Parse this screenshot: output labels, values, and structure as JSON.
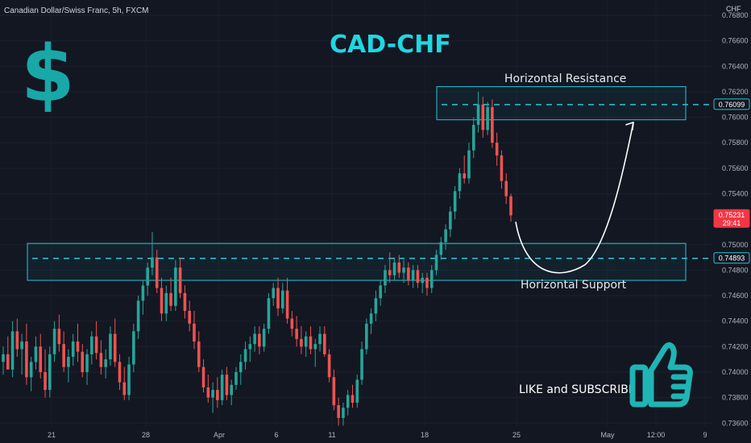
{
  "header": {
    "symbol": "Canadian Dollar/Swiss Franc, 5h, FXCM",
    "currency": "CHF"
  },
  "annotations": {
    "title": "CAD-CHF",
    "dollar_sign": "$",
    "resistance_label": "Horizontal Resistance",
    "support_label": "Horizontal Support",
    "cta": "LIKE and SUBSCRIBE",
    "thumb_icon": "thumbs-up-icon"
  },
  "colors": {
    "background": "#131722",
    "up": "#26a69a",
    "down": "#ef5350",
    "zone_stroke": "#26c6da",
    "title": "#1fd7e2",
    "dollar": "#18a8a8",
    "price_badge": "#f23645"
  },
  "chart_data": {
    "type": "candlestick",
    "symbol": "Canadian Dollar/Swiss Franc",
    "interval": "5h",
    "source": "FXCM",
    "ylim": [
      0.7357,
      0.7692
    ],
    "y_ticks": [
      "0.76800",
      "0.76600",
      "0.76400",
      "0.76200",
      "0.76000",
      "0.75800",
      "0.75600",
      "0.75400",
      "0.75200",
      "0.75000",
      "0.74800",
      "0.74600",
      "0.74400",
      "0.74200",
      "0.74000",
      "0.73800",
      "0.73600"
    ],
    "x_ticks": [
      "21",
      "28",
      "Apr",
      "6",
      "11",
      "18",
      "25",
      "May",
      "12:00",
      "9"
    ],
    "current_price": "0.75231",
    "countdown": "29:41",
    "resistance_level": "0.76099",
    "support_level": "0.74893",
    "resistance_zone": [
      0.7598,
      0.7624
    ],
    "support_zone": [
      0.7472,
      0.7501
    ],
    "projection": "drop to horizontal support then rally to horizontal resistance",
    "candles": [
      {
        "o": 0.7408,
        "h": 0.742,
        "l": 0.7398,
        "c": 0.7414
      },
      {
        "o": 0.7414,
        "h": 0.7428,
        "l": 0.7405,
        "c": 0.7402
      },
      {
        "o": 0.7402,
        "h": 0.744,
        "l": 0.7396,
        "c": 0.7432
      },
      {
        "o": 0.7432,
        "h": 0.7442,
        "l": 0.7412,
        "c": 0.7418
      },
      {
        "o": 0.7418,
        "h": 0.743,
        "l": 0.7398,
        "c": 0.7424
      },
      {
        "o": 0.7424,
        "h": 0.7438,
        "l": 0.739,
        "c": 0.7396
      },
      {
        "o": 0.7396,
        "h": 0.7412,
        "l": 0.7385,
        "c": 0.7408
      },
      {
        "o": 0.7408,
        "h": 0.7428,
        "l": 0.7402,
        "c": 0.742
      },
      {
        "o": 0.742,
        "h": 0.743,
        "l": 0.7395,
        "c": 0.74
      },
      {
        "o": 0.74,
        "h": 0.7418,
        "l": 0.738,
        "c": 0.7386
      },
      {
        "o": 0.7386,
        "h": 0.742,
        "l": 0.738,
        "c": 0.7414
      },
      {
        "o": 0.7414,
        "h": 0.744,
        "l": 0.7408,
        "c": 0.7434
      },
      {
        "o": 0.7434,
        "h": 0.7445,
        "l": 0.7416,
        "c": 0.7422
      },
      {
        "o": 0.7422,
        "h": 0.7432,
        "l": 0.74,
        "c": 0.7404
      },
      {
        "o": 0.7404,
        "h": 0.7418,
        "l": 0.7392,
        "c": 0.7412
      },
      {
        "o": 0.7412,
        "h": 0.743,
        "l": 0.7405,
        "c": 0.7424
      },
      {
        "o": 0.7424,
        "h": 0.7438,
        "l": 0.7408,
        "c": 0.7416
      },
      {
        "o": 0.7416,
        "h": 0.7422,
        "l": 0.7396,
        "c": 0.74
      },
      {
        "o": 0.74,
        "h": 0.7418,
        "l": 0.739,
        "c": 0.7414
      },
      {
        "o": 0.7414,
        "h": 0.7432,
        "l": 0.7406,
        "c": 0.7428
      },
      {
        "o": 0.7428,
        "h": 0.744,
        "l": 0.741,
        "c": 0.7415
      },
      {
        "o": 0.7415,
        "h": 0.7425,
        "l": 0.7398,
        "c": 0.7404
      },
      {
        "o": 0.7404,
        "h": 0.7418,
        "l": 0.7395,
        "c": 0.741
      },
      {
        "o": 0.741,
        "h": 0.7436,
        "l": 0.7405,
        "c": 0.743
      },
      {
        "o": 0.743,
        "h": 0.7442,
        "l": 0.7404,
        "c": 0.7408
      },
      {
        "o": 0.7408,
        "h": 0.7414,
        "l": 0.7386,
        "c": 0.7392
      },
      {
        "o": 0.7392,
        "h": 0.7404,
        "l": 0.7378,
        "c": 0.7382
      },
      {
        "o": 0.7382,
        "h": 0.7412,
        "l": 0.7378,
        "c": 0.7406
      },
      {
        "o": 0.7406,
        "h": 0.7438,
        "l": 0.74,
        "c": 0.7432
      },
      {
        "o": 0.7432,
        "h": 0.746,
        "l": 0.7426,
        "c": 0.7456
      },
      {
        "o": 0.7456,
        "h": 0.7472,
        "l": 0.7445,
        "c": 0.7468
      },
      {
        "o": 0.7468,
        "h": 0.7486,
        "l": 0.746,
        "c": 0.7482
      },
      {
        "o": 0.7482,
        "h": 0.751,
        "l": 0.7476,
        "c": 0.749
      },
      {
        "o": 0.749,
        "h": 0.7496,
        "l": 0.7462,
        "c": 0.7466
      },
      {
        "o": 0.7466,
        "h": 0.7474,
        "l": 0.744,
        "c": 0.7446
      },
      {
        "o": 0.7446,
        "h": 0.7468,
        "l": 0.744,
        "c": 0.7462
      },
      {
        "o": 0.7462,
        "h": 0.7474,
        "l": 0.7448,
        "c": 0.7452
      },
      {
        "o": 0.7452,
        "h": 0.7488,
        "l": 0.7448,
        "c": 0.7482
      },
      {
        "o": 0.7482,
        "h": 0.749,
        "l": 0.7458,
        "c": 0.7462
      },
      {
        "o": 0.7462,
        "h": 0.7468,
        "l": 0.7442,
        "c": 0.7448
      },
      {
        "o": 0.7448,
        "h": 0.7456,
        "l": 0.7432,
        "c": 0.7438
      },
      {
        "o": 0.7438,
        "h": 0.7448,
        "l": 0.7418,
        "c": 0.7424
      },
      {
        "o": 0.7424,
        "h": 0.7432,
        "l": 0.74,
        "c": 0.7404
      },
      {
        "o": 0.7404,
        "h": 0.741,
        "l": 0.7384,
        "c": 0.7388
      },
      {
        "o": 0.7388,
        "h": 0.7398,
        "l": 0.7376,
        "c": 0.738
      },
      {
        "o": 0.738,
        "h": 0.7392,
        "l": 0.7368,
        "c": 0.7386
      },
      {
        "o": 0.7386,
        "h": 0.7396,
        "l": 0.7372,
        "c": 0.7378
      },
      {
        "o": 0.7378,
        "h": 0.7402,
        "l": 0.7374,
        "c": 0.7398
      },
      {
        "o": 0.7398,
        "h": 0.7404,
        "l": 0.7378,
        "c": 0.7382
      },
      {
        "o": 0.7382,
        "h": 0.7394,
        "l": 0.7374,
        "c": 0.739
      },
      {
        "o": 0.739,
        "h": 0.7404,
        "l": 0.7386,
        "c": 0.74
      },
      {
        "o": 0.74,
        "h": 0.7414,
        "l": 0.739,
        "c": 0.7408
      },
      {
        "o": 0.7408,
        "h": 0.7424,
        "l": 0.7402,
        "c": 0.7418
      },
      {
        "o": 0.7418,
        "h": 0.7428,
        "l": 0.7408,
        "c": 0.7422
      },
      {
        "o": 0.7422,
        "h": 0.7436,
        "l": 0.7416,
        "c": 0.743
      },
      {
        "o": 0.743,
        "h": 0.7436,
        "l": 0.7414,
        "c": 0.742
      },
      {
        "o": 0.742,
        "h": 0.7438,
        "l": 0.7416,
        "c": 0.7434
      },
      {
        "o": 0.7434,
        "h": 0.7462,
        "l": 0.743,
        "c": 0.7458
      },
      {
        "o": 0.7458,
        "h": 0.747,
        "l": 0.7452,
        "c": 0.7466
      },
      {
        "o": 0.7466,
        "h": 0.7474,
        "l": 0.7444,
        "c": 0.745
      },
      {
        "o": 0.745,
        "h": 0.747,
        "l": 0.7446,
        "c": 0.7464
      },
      {
        "o": 0.7464,
        "h": 0.7474,
        "l": 0.7438,
        "c": 0.7442
      },
      {
        "o": 0.7442,
        "h": 0.7448,
        "l": 0.7428,
        "c": 0.7434
      },
      {
        "o": 0.7434,
        "h": 0.7444,
        "l": 0.742,
        "c": 0.7426
      },
      {
        "o": 0.7426,
        "h": 0.7436,
        "l": 0.7414,
        "c": 0.742
      },
      {
        "o": 0.742,
        "h": 0.7432,
        "l": 0.7412,
        "c": 0.7428
      },
      {
        "o": 0.7428,
        "h": 0.7436,
        "l": 0.7414,
        "c": 0.7418
      },
      {
        "o": 0.7418,
        "h": 0.7426,
        "l": 0.7404,
        "c": 0.7422
      },
      {
        "o": 0.7422,
        "h": 0.7436,
        "l": 0.7416,
        "c": 0.743
      },
      {
        "o": 0.743,
        "h": 0.7436,
        "l": 0.7412,
        "c": 0.7414
      },
      {
        "o": 0.7414,
        "h": 0.7418,
        "l": 0.7392,
        "c": 0.7396
      },
      {
        "o": 0.7396,
        "h": 0.7402,
        "l": 0.737,
        "c": 0.7374
      },
      {
        "o": 0.7374,
        "h": 0.738,
        "l": 0.7358,
        "c": 0.7364
      },
      {
        "o": 0.7364,
        "h": 0.7376,
        "l": 0.7358,
        "c": 0.7372
      },
      {
        "o": 0.7372,
        "h": 0.7386,
        "l": 0.7366,
        "c": 0.7382
      },
      {
        "o": 0.7382,
        "h": 0.739,
        "l": 0.7372,
        "c": 0.7376
      },
      {
        "o": 0.7376,
        "h": 0.7398,
        "l": 0.7372,
        "c": 0.7394
      },
      {
        "o": 0.7394,
        "h": 0.7424,
        "l": 0.739,
        "c": 0.7418
      },
      {
        "o": 0.7418,
        "h": 0.7442,
        "l": 0.7414,
        "c": 0.7438
      },
      {
        "o": 0.7438,
        "h": 0.745,
        "l": 0.743,
        "c": 0.7446
      },
      {
        "o": 0.7446,
        "h": 0.7464,
        "l": 0.744,
        "c": 0.7458
      },
      {
        "o": 0.7458,
        "h": 0.7472,
        "l": 0.7452,
        "c": 0.7468
      },
      {
        "o": 0.7468,
        "h": 0.7484,
        "l": 0.7462,
        "c": 0.748
      },
      {
        "o": 0.748,
        "h": 0.7494,
        "l": 0.747,
        "c": 0.7476
      },
      {
        "o": 0.7476,
        "h": 0.749,
        "l": 0.7472,
        "c": 0.7486
      },
      {
        "o": 0.7486,
        "h": 0.7492,
        "l": 0.7474,
        "c": 0.7478
      },
      {
        "o": 0.7478,
        "h": 0.7488,
        "l": 0.747,
        "c": 0.7482
      },
      {
        "o": 0.7482,
        "h": 0.7486,
        "l": 0.7468,
        "c": 0.7472
      },
      {
        "o": 0.7472,
        "h": 0.7484,
        "l": 0.7466,
        "c": 0.748
      },
      {
        "o": 0.748,
        "h": 0.7484,
        "l": 0.7466,
        "c": 0.747
      },
      {
        "o": 0.747,
        "h": 0.7478,
        "l": 0.7462,
        "c": 0.7474
      },
      {
        "o": 0.7474,
        "h": 0.7478,
        "l": 0.746,
        "c": 0.7466
      },
      {
        "o": 0.7466,
        "h": 0.7484,
        "l": 0.7462,
        "c": 0.748
      },
      {
        "o": 0.748,
        "h": 0.7496,
        "l": 0.7476,
        "c": 0.7492
      },
      {
        "o": 0.7492,
        "h": 0.7506,
        "l": 0.7488,
        "c": 0.7502
      },
      {
        "o": 0.7502,
        "h": 0.7516,
        "l": 0.7496,
        "c": 0.7512
      },
      {
        "o": 0.7512,
        "h": 0.753,
        "l": 0.7506,
        "c": 0.7526
      },
      {
        "o": 0.7526,
        "h": 0.7546,
        "l": 0.752,
        "c": 0.7542
      },
      {
        "o": 0.7542,
        "h": 0.756,
        "l": 0.7536,
        "c": 0.7556
      },
      {
        "o": 0.7556,
        "h": 0.757,
        "l": 0.7548,
        "c": 0.7552
      },
      {
        "o": 0.7552,
        "h": 0.758,
        "l": 0.7548,
        "c": 0.7574
      },
      {
        "o": 0.7574,
        "h": 0.76,
        "l": 0.7568,
        "c": 0.7594
      },
      {
        "o": 0.7594,
        "h": 0.762,
        "l": 0.7588,
        "c": 0.761
      },
      {
        "o": 0.761,
        "h": 0.7616,
        "l": 0.7584,
        "c": 0.759
      },
      {
        "o": 0.759,
        "h": 0.7612,
        "l": 0.7586,
        "c": 0.7608
      },
      {
        "o": 0.7608,
        "h": 0.7614,
        "l": 0.7576,
        "c": 0.758
      },
      {
        "o": 0.758,
        "h": 0.7588,
        "l": 0.7562,
        "c": 0.757
      },
      {
        "o": 0.757,
        "h": 0.7574,
        "l": 0.7544,
        "c": 0.755
      },
      {
        "o": 0.755,
        "h": 0.7556,
        "l": 0.7532,
        "c": 0.7538
      },
      {
        "o": 0.7538,
        "h": 0.754,
        "l": 0.7518,
        "c": 0.7523
      }
    ]
  }
}
